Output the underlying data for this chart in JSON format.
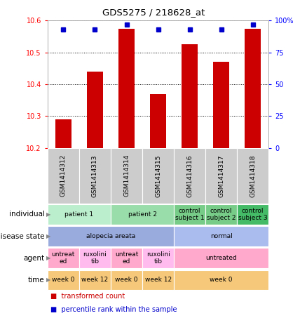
{
  "title": "GDS5275 / 218628_at",
  "samples": [
    "GSM1414312",
    "GSM1414313",
    "GSM1414314",
    "GSM1414315",
    "GSM1414316",
    "GSM1414317",
    "GSM1414318"
  ],
  "transformed_count": [
    10.29,
    10.44,
    10.575,
    10.37,
    10.525,
    10.47,
    10.575
  ],
  "percentile_rank": [
    93,
    93,
    97,
    93,
    93,
    93,
    97
  ],
  "ylim_left": [
    10.2,
    10.6
  ],
  "ylim_right": [
    0,
    100
  ],
  "yticks_left": [
    10.2,
    10.3,
    10.4,
    10.5,
    10.6
  ],
  "yticks_right": [
    0,
    25,
    50,
    75,
    100
  ],
  "ytick_right_labels": [
    "0",
    "25",
    "50",
    "75",
    "100%"
  ],
  "bar_color": "#cc0000",
  "dot_color": "#0000cc",
  "bar_width": 0.5,
  "annotations": {
    "individual": {
      "label": "individual",
      "groups": [
        {
          "span": [
            0,
            1
          ],
          "text": "patient 1",
          "color": "#bbeecc"
        },
        {
          "span": [
            2,
            3
          ],
          "text": "patient 2",
          "color": "#99ddaa"
        },
        {
          "span": [
            4,
            4
          ],
          "text": "control\nsubject 1",
          "color": "#77cc88"
        },
        {
          "span": [
            5,
            5
          ],
          "text": "control\nsubject 2",
          "color": "#77cc88"
        },
        {
          "span": [
            6,
            6
          ],
          "text": "control\nsubject 3",
          "color": "#44bb66"
        }
      ]
    },
    "disease_state": {
      "label": "disease state",
      "groups": [
        {
          "span": [
            0,
            3
          ],
          "text": "alopecia areata",
          "color": "#99aadd"
        },
        {
          "span": [
            4,
            6
          ],
          "text": "normal",
          "color": "#aabbee"
        }
      ]
    },
    "agent": {
      "label": "agent",
      "groups": [
        {
          "span": [
            0,
            0
          ],
          "text": "untreat\ned",
          "color": "#ffaacc"
        },
        {
          "span": [
            1,
            1
          ],
          "text": "ruxolini\ntib",
          "color": "#ffbbee"
        },
        {
          "span": [
            2,
            2
          ],
          "text": "untreat\ned",
          "color": "#ffaacc"
        },
        {
          "span": [
            3,
            3
          ],
          "text": "ruxolini\ntib",
          "color": "#ffbbee"
        },
        {
          "span": [
            4,
            6
          ],
          "text": "untreated",
          "color": "#ffaacc"
        }
      ]
    },
    "time": {
      "label": "time",
      "groups": [
        {
          "span": [
            0,
            0
          ],
          "text": "week 0",
          "color": "#f5c87a"
        },
        {
          "span": [
            1,
            1
          ],
          "text": "week 12",
          "color": "#f5c87a"
        },
        {
          "span": [
            2,
            2
          ],
          "text": "week 0",
          "color": "#f5c87a"
        },
        {
          "span": [
            3,
            3
          ],
          "text": "week 12",
          "color": "#f5c87a"
        },
        {
          "span": [
            4,
            6
          ],
          "text": "week 0",
          "color": "#f5c87a"
        }
      ]
    }
  },
  "sample_bg_color": "#cccccc",
  "legend_items": [
    {
      "color": "#cc0000",
      "label": "transformed count"
    },
    {
      "color": "#0000cc",
      "label": "percentile rank within the sample"
    }
  ],
  "annot_keys": [
    "individual",
    "disease_state",
    "agent",
    "time"
  ],
  "annot_labels": [
    "individual",
    "disease state",
    "agent",
    "time"
  ]
}
